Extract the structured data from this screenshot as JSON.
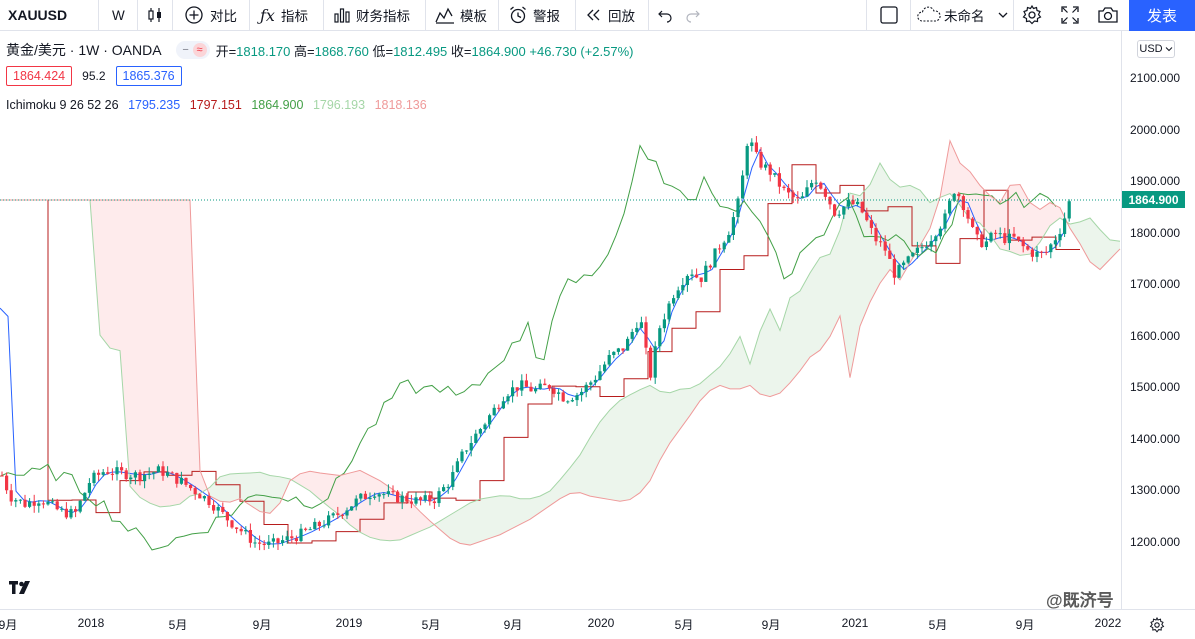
{
  "toolbar": {
    "symbol": "XAUUSD",
    "interval": "W",
    "compare": "对比",
    "indicators": "指标",
    "financials": "财务指标",
    "templates": "模板",
    "alert": "警报",
    "replay": "回放",
    "layout_name": "未命名",
    "publish": "发表"
  },
  "legend": {
    "title": "黄金/美元 · 1W · OANDA",
    "open_label": "开=",
    "open": "1818.170",
    "high_label": "高=",
    "high": "1868.760",
    "low_label": "低=",
    "low": "1812.495",
    "close_label": "收=",
    "close": "1864.900",
    "change": "+46.730 (+2.57%)",
    "bid": "1864.424",
    "spread": "95.2",
    "ask": "1865.376"
  },
  "indicator": {
    "name": "Ichimoku 9 26 52 26",
    "conversion": "1795.235",
    "base": "1797.151",
    "lagging": "1864.900",
    "lead_a": "1796.193",
    "lead_b": "1818.136"
  },
  "colors": {
    "up": "#089981",
    "down": "#f23645",
    "conversion": "#2962ff",
    "base": "#b71c1c",
    "lagging": "#43a047",
    "lead_a": "#a5d6a7",
    "lead_b": "#ef9a9a",
    "accent": "#2962ff"
  },
  "price_axis": {
    "currency": "USD",
    "ticks": [
      "2100.000",
      "2000.000",
      "1900.000",
      "1800.000",
      "1700.000",
      "1600.000",
      "1500.000",
      "1400.000",
      "1300.000",
      "1200.000"
    ],
    "last_price": "1864.900"
  },
  "time_axis": {
    "labels": [
      "9月",
      "2018",
      "5月",
      "9月",
      "2019",
      "5月",
      "9月",
      "2020",
      "5月",
      "9月",
      "2021",
      "5月",
      "9月",
      "2022"
    ]
  },
  "watermark": "@既济号"
}
